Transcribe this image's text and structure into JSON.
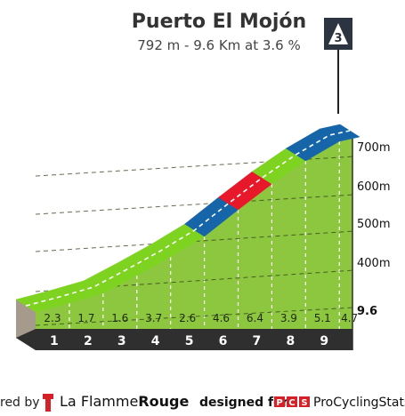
{
  "chart_data": {
    "type": "area",
    "title": "Puerto El Mojón",
    "subtitle": "792 m - 9.6 Km at 3.6 %",
    "category_badge": "3",
    "x": [
      0,
      1,
      2,
      3,
      4,
      5,
      6,
      7,
      8,
      9,
      9.6
    ],
    "x_tick_labels": [
      "1",
      "2",
      "3",
      "4",
      "5",
      "6",
      "7",
      "8",
      "9",
      "9.6"
    ],
    "segment_gradients": [
      "2.3",
      "1.7",
      "1.6",
      "3.7",
      "2.6",
      "4.6",
      "6.4",
      "3.9",
      "5.1",
      "4.7"
    ],
    "y_ticks": [
      "400m",
      "500m",
      "600m",
      "700m"
    ],
    "y_tick_values": [
      400,
      500,
      600,
      700
    ],
    "elevation_start": 447,
    "elevation_end": 792,
    "gradient_colors": {
      "easy": "#7ed321",
      "moderate": "#1565a8",
      "steep": "#e8182b"
    },
    "segment_color_class": [
      "easy",
      "easy",
      "easy",
      "easy",
      "easy",
      "moderate",
      "steep",
      "easy",
      "moderate",
      "moderate"
    ],
    "grid": true,
    "grid_style": "dashed"
  },
  "footer": {
    "powered_by": "red by",
    "brand_la": "La",
    "brand_flamme": "Flamme",
    "brand_rouge": "Rouge",
    "designed_for": "designed for",
    "pcs_letters": [
      "P",
      "C",
      "S"
    ],
    "pcs_name": "ProCyclingStats"
  }
}
